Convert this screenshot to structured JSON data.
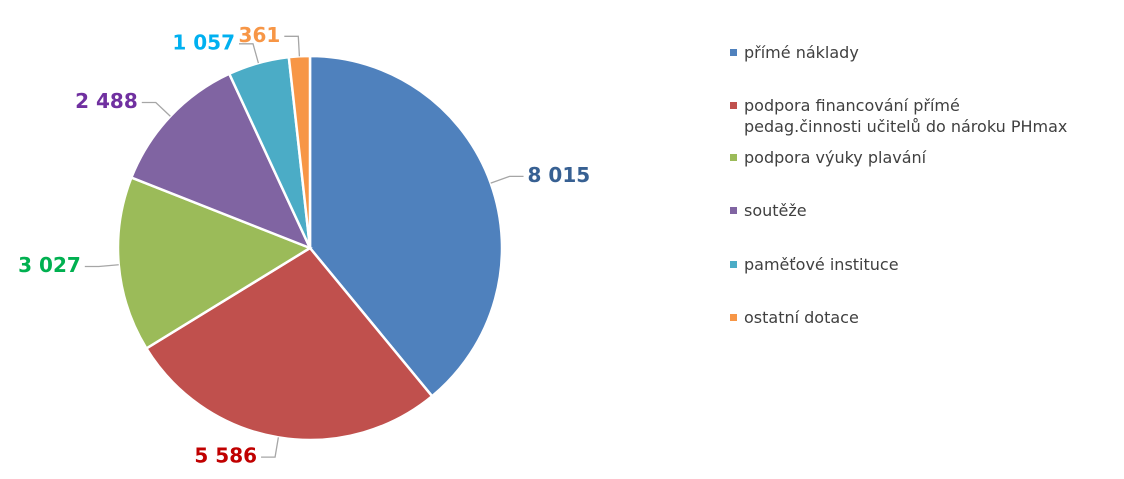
{
  "chart_data": {
    "type": "pie",
    "categories": [
      "přímé náklady",
      "podpora financování přímé pedag.činnosti učitelů do nároku PHmax",
      "podpora výuky plavání",
      "soutěže",
      "paměťové instituce",
      "ostatní dotace"
    ],
    "values": [
      8015,
      5586,
      3027,
      2488,
      1057,
      361
    ],
    "value_labels": [
      "8 015",
      "5 586",
      "3 027",
      "2 488",
      "1 057",
      "361"
    ],
    "colors": [
      "#4f81bd",
      "#c0504d",
      "#9bbb59",
      "#8064a2",
      "#4bacc6",
      "#f79646"
    ],
    "value_label_colors": [
      "#376092",
      "#c00000",
      "#00b050",
      "#7030a0",
      "#00b0f0",
      "#f79646"
    ],
    "legend": "right"
  }
}
